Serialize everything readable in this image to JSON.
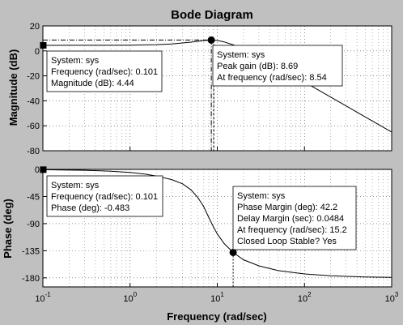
{
  "title": "Bode Diagram",
  "chart_data": [
    {
      "type": "line",
      "panel": "magnitude",
      "xscale": "log",
      "xlim": [
        0.1,
        1000
      ],
      "ylim": [
        -80,
        20
      ],
      "ylabel": "Magnitude (dB)",
      "yticks": [
        "20",
        "0",
        "-20",
        "-40",
        "-60",
        "-80"
      ],
      "grid": true,
      "series": [
        {
          "x": [
            0.1,
            0.2,
            0.5,
            1,
            2,
            3,
            5,
            7,
            8.54,
            10,
            12,
            15,
            20,
            30,
            50,
            100,
            200,
            500,
            1000
          ],
          "y": [
            4.44,
            4.45,
            4.5,
            4.6,
            5.0,
            5.6,
            7.0,
            8.3,
            8.69,
            8.4,
            7.2,
            5.0,
            1.8,
            -4.5,
            -13,
            -25,
            -37,
            -53,
            -65
          ]
        }
      ],
      "datatips": [
        {
          "lines": [
            "System: sys",
            "Frequency (rad/sec): 0.101",
            "Magnitude (dB): 4.44"
          ],
          "x": 0.101,
          "y": 4.44
        },
        {
          "lines": [
            "System: sys",
            "Peak gain (dB): 8.69",
            "At frequency (rad/sec): 8.54"
          ],
          "x": 8.54,
          "y": 8.69
        }
      ]
    },
    {
      "type": "line",
      "panel": "phase",
      "xscale": "log",
      "xlim": [
        0.1,
        1000
      ],
      "ylim": [
        -195,
        0
      ],
      "xlabel": "Frequency  (rad/sec)",
      "ylabel": "Phase (deg)",
      "xticks": [
        "10^-1",
        "10^0",
        "10^1",
        "10^2",
        "10^3"
      ],
      "yticks": [
        "0",
        "-45",
        "-90",
        "-135",
        "-180"
      ],
      "grid": true,
      "series": [
        {
          "x": [
            0.1,
            0.3,
            0.6,
            1,
            1.5,
            2,
            3,
            4,
            5,
            6,
            7,
            8,
            9,
            10,
            12,
            15.2,
            20,
            30,
            50,
            100,
            200,
            500,
            1000
          ],
          "y": [
            -0.483,
            -1.5,
            -3,
            -5,
            -8,
            -11,
            -17,
            -24,
            -34,
            -47,
            -62,
            -80,
            -95,
            -107,
            -123,
            -137.8,
            -150,
            -160,
            -168,
            -173.5,
            -176.5,
            -178.5,
            -179.2
          ]
        }
      ],
      "datatips": [
        {
          "lines": [
            "System: sys",
            "Frequency (rad/sec): 0.101",
            "Phase (deg): -0.483"
          ],
          "x": 0.101,
          "y": -0.483
        },
        {
          "lines": [
            "System: sys",
            "Phase Margin (deg): 42.2",
            "Delay Margin (sec): 0.0484",
            "At frequency (rad/sec): 15.2",
            "Closed Loop Stable? Yes"
          ],
          "x": 15.2,
          "y": -137.8
        }
      ]
    }
  ]
}
